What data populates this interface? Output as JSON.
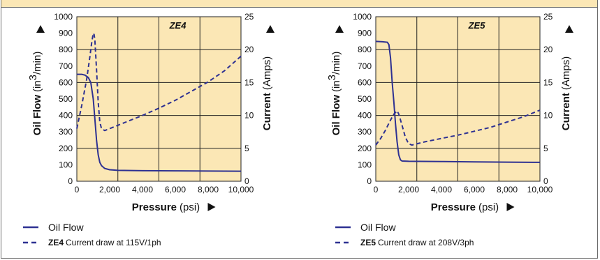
{
  "chart_data": [
    {
      "type": "line",
      "title": "ZE4",
      "xlabel_bold": "Pressure",
      "xlabel_unit": "(psi)",
      "ylabel_left_bold": "Oil Flow",
      "ylabel_left_unit_pre": "(in",
      "ylabel_left_unit_sup": "3",
      "ylabel_left_unit_post": "/min)",
      "ylabel_right_bold": "Current",
      "ylabel_right_unit": "(Amps)",
      "xlim": [
        0,
        10000
      ],
      "ylim_left": [
        0,
        1000
      ],
      "ylim_right": [
        0,
        25
      ],
      "x_ticks": [
        "0",
        "2,000",
        "4,000",
        "6,000",
        "8,000",
        "10,000"
      ],
      "y_left_ticks": [
        "0",
        "100",
        "200",
        "300",
        "400",
        "500",
        "600",
        "700",
        "800",
        "900",
        "1000"
      ],
      "y_right_ticks": [
        "0",
        "5",
        "10",
        "15",
        "20",
        "25"
      ],
      "grid": true,
      "background": "#fbe7b5",
      "line_color": "#2e3192",
      "series": [
        {
          "name": "Oil Flow",
          "axis": "left",
          "style": "solid",
          "x": [
            0,
            300,
            500,
            700,
            850,
            1000,
            1100,
            1200,
            1300,
            1400,
            1500,
            1700,
            2000,
            2500,
            4000,
            6000,
            8000,
            10000
          ],
          "y": [
            650,
            650,
            645,
            630,
            600,
            500,
            380,
            250,
            160,
            115,
            95,
            78,
            70,
            66,
            64,
            63,
            62,
            61
          ]
        },
        {
          "name": "Current draw at 115V/1ph",
          "axis": "right",
          "style": "dashed",
          "x": [
            0,
            300,
            600,
            800,
            900,
            1000,
            1050,
            1100,
            1200,
            1300,
            1400,
            1500,
            1700,
            2000,
            3000,
            4000,
            5000,
            6000,
            7000,
            8000,
            9000,
            10000
          ],
          "y": [
            8,
            11.5,
            15.5,
            19,
            21,
            22.5,
            22.3,
            21.5,
            17,
            12,
            9,
            8,
            7.7,
            8,
            9,
            10,
            11.1,
            12.3,
            13.7,
            15.1,
            16.8,
            19
          ]
        }
      ],
      "legend": {
        "line1": "Oil Flow",
        "line2_model": "ZE4",
        "line2_text": "Current draw at 115V/1ph"
      }
    },
    {
      "type": "line",
      "title": "ZE5",
      "xlabel_bold": "Pressure",
      "xlabel_unit": "(psi)",
      "ylabel_left_bold": "Oil Flow",
      "ylabel_left_unit_pre": "(in",
      "ylabel_left_unit_sup": "3",
      "ylabel_left_unit_post": "/min)",
      "ylabel_right_bold": "Current",
      "ylabel_right_unit": "(Amps)",
      "xlim": [
        0,
        10000
      ],
      "ylim_left": [
        0,
        1000
      ],
      "ylim_right": [
        0,
        25
      ],
      "x_ticks": [
        "0",
        "2,000",
        "4,000",
        "6,000",
        "8,000",
        "10,000"
      ],
      "y_left_ticks": [
        "0",
        "100",
        "200",
        "300",
        "400",
        "500",
        "600",
        "700",
        "800",
        "900",
        "1000"
      ],
      "y_right_ticks": [
        "0",
        "5",
        "10",
        "15",
        "20",
        "25"
      ],
      "grid": true,
      "background": "#fbe7b5",
      "line_color": "#2e3192",
      "series": [
        {
          "name": "Oil Flow",
          "axis": "left",
          "style": "solid",
          "x": [
            0,
            400,
            700,
            800,
            900,
            1000,
            1100,
            1200,
            1300,
            1400,
            1500,
            1600,
            2000,
            4000,
            6000,
            8000,
            10000
          ],
          "y": [
            850,
            848,
            845,
            830,
            750,
            600,
            480,
            350,
            240,
            160,
            130,
            123,
            121,
            120,
            118,
            116,
            115
          ]
        },
        {
          "name": "Current draw at 208V/3ph",
          "axis": "right",
          "style": "dashed",
          "x": [
            0,
            300,
            600,
            900,
            1100,
            1300,
            1400,
            1600,
            1800,
            2000,
            2200,
            3000,
            4000,
            5000,
            6000,
            7000,
            8000,
            9000,
            10000
          ],
          "y": [
            5.5,
            6.5,
            7.8,
            9.3,
            10.2,
            10.7,
            10.2,
            8.5,
            6.7,
            5.7,
            5.5,
            6,
            6.5,
            7,
            7.6,
            8.2,
            9,
            9.8,
            10.8
          ]
        }
      ],
      "legend": {
        "line1": "Oil Flow",
        "line2_model": "ZE5",
        "line2_text": "Current draw at 208V/3ph"
      }
    }
  ]
}
